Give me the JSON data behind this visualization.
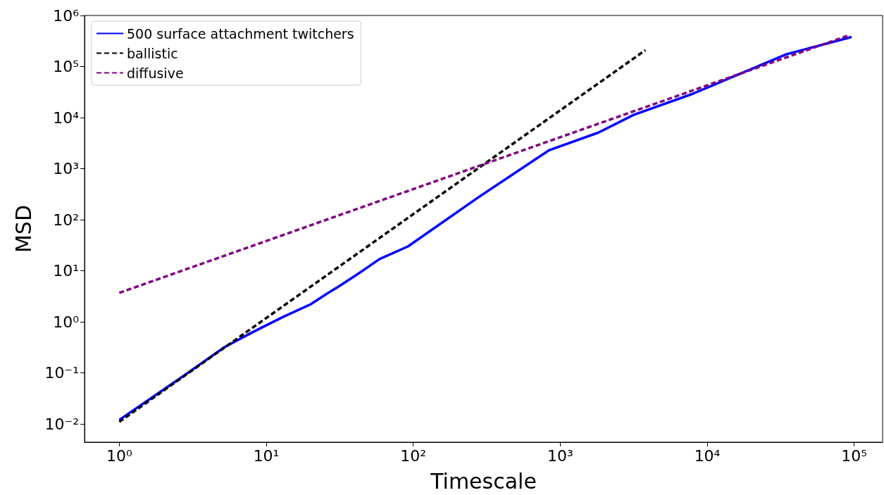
{
  "chart_data": {
    "type": "line",
    "xlabel": "Timescale",
    "ylabel": "MSD",
    "log": "xy",
    "grid": false,
    "legend": "top left",
    "xlim": [
      0.58,
      156000
    ],
    "ylim": [
      0.0044,
      1000000
    ],
    "xticks": [
      {
        "value": 1,
        "label": "10⁰"
      },
      {
        "value": 10,
        "label": "10¹"
      },
      {
        "value": 100,
        "label": "10²"
      },
      {
        "value": 1000,
        "label": "10³"
      },
      {
        "value": 10000,
        "label": "10⁴"
      },
      {
        "value": 100000,
        "label": "10⁵"
      }
    ],
    "yticks": [
      {
        "value": 0.01,
        "label": "10⁻²"
      },
      {
        "value": 0.1,
        "label": "10⁻¹"
      },
      {
        "value": 1,
        "label": "10⁰"
      },
      {
        "value": 10,
        "label": "10¹"
      },
      {
        "value": 100,
        "label": "10²"
      },
      {
        "value": 1000,
        "label": "10³"
      },
      {
        "value": 10000,
        "label": "10⁴"
      },
      {
        "value": 100000,
        "label": "10⁵"
      },
      {
        "value": 1000000,
        "label": "10⁶"
      }
    ],
    "series": [
      {
        "name": "500 surface attachment twitchers",
        "color": "#0000ff",
        "line_style": "solid",
        "x": [
          1,
          2.5,
          5.2,
          8.1,
          13,
          20,
          26,
          31,
          40,
          59,
          92,
          280,
          840,
          1820,
          3160,
          7900,
          34500,
          96000
        ],
        "values": [
          0.012,
          0.073,
          0.32,
          0.63,
          1.25,
          2.2,
          3.6,
          4.9,
          7.9,
          17,
          30,
          280,
          2300,
          5100,
          11300,
          29000,
          174000,
          380000
        ]
      },
      {
        "name": "ballistic",
        "color": "#000000",
        "line_style": "dashed",
        "x": [
          1,
          3800
        ],
        "values": [
          0.011,
          210000
        ]
      },
      {
        "name": "diffusive",
        "color": "#800080",
        "line_style": "dashed",
        "x": [
          1,
          90000
        ],
        "values": [
          3.7,
          400000
        ]
      }
    ]
  }
}
